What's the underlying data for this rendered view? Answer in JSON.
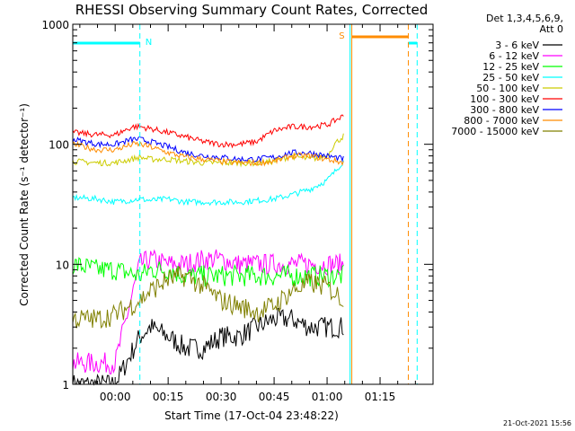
{
  "chart_data": {
    "type": "line",
    "title": "RHESSI Observing Summary Count Rates, Corrected",
    "xlabel": "Start Time (17-Oct-04 23:48:22)",
    "ylabel": "Corrected Count Rate (s⁻¹ detector⁻¹)",
    "y_scale": "log",
    "ylim": [
      1,
      1000
    ],
    "xlim_minutes": [
      -12,
      90
    ],
    "x_ticks": [
      {
        "label": "00:00",
        "minutes": 0
      },
      {
        "label": "00:15",
        "minutes": 15
      },
      {
        "label": "00:30",
        "minutes": 30
      },
      {
        "label": "00:45",
        "minutes": 45
      },
      {
        "label": "01:00",
        "minutes": 60
      },
      {
        "label": "01:15",
        "minutes": 75
      }
    ],
    "y_ticks": [
      {
        "label": "1",
        "value": 1
      },
      {
        "label": "10",
        "value": 10
      },
      {
        "label": "100",
        "value": 100
      },
      {
        "label": "1000",
        "value": 1000
      }
    ],
    "legend_header": [
      "Det 1,3,4,5,6,9,",
      "Att 0"
    ],
    "legend_placement": "right",
    "markers": [
      {
        "label": "N",
        "color": "#00ffff",
        "start_minute": -12,
        "end_minute": 7
      },
      {
        "label": "S",
        "color": "#ff8c00",
        "start_minute": 67,
        "end_minute": 83
      }
    ],
    "vlines": [
      {
        "minute": 7,
        "color": "#00ffff",
        "style": "dashed"
      },
      {
        "minute": 66.5,
        "color": "#00ffff",
        "style": "solid"
      },
      {
        "minute": 67,
        "color": "#ff8c00",
        "style": "solid"
      },
      {
        "minute": 83,
        "color": "#ff8c00",
        "style": "dashed"
      },
      {
        "minute": 85.5,
        "color": "#00ffff",
        "style": "dashed"
      }
    ],
    "series": [
      {
        "name": "3 - 6 keV",
        "color": "#000000",
        "x": [
          -12,
          -5,
          0,
          7,
          10,
          15,
          20,
          25,
          30,
          35,
          40,
          45,
          50,
          55,
          60,
          65
        ],
        "y": [
          1,
          1,
          1,
          2.5,
          3,
          2.5,
          2,
          2,
          2.5,
          2.5,
          3,
          3.5,
          3.5,
          3,
          3,
          3
        ]
      },
      {
        "name": "6 - 12 keV",
        "color": "#ff00ff",
        "x": [
          -12,
          -5,
          0,
          7,
          10,
          15,
          20,
          25,
          30,
          35,
          40,
          45,
          50,
          55,
          60,
          65
        ],
        "y": [
          1.5,
          1.5,
          1.5,
          10,
          11,
          10,
          10,
          11,
          11,
          10,
          10,
          10,
          10,
          10,
          10,
          10
        ]
      },
      {
        "name": "12 - 25 keV",
        "color": "#00ff00",
        "x": [
          -12,
          -5,
          0,
          7,
          10,
          15,
          20,
          25,
          30,
          35,
          40,
          45,
          50,
          55,
          60,
          65
        ],
        "y": [
          10,
          9,
          9,
          8,
          9,
          9,
          8,
          8,
          8,
          8,
          8,
          8,
          8,
          8,
          8,
          8
        ]
      },
      {
        "name": "25 - 50 keV",
        "color": "#00ffff",
        "x": [
          -12,
          -5,
          0,
          7,
          10,
          15,
          20,
          25,
          30,
          35,
          40,
          45,
          50,
          55,
          60,
          62,
          65
        ],
        "y": [
          36,
          35,
          33,
          35,
          34,
          35,
          33,
          33,
          33,
          33,
          34,
          35,
          38,
          42,
          50,
          58,
          75
        ]
      },
      {
        "name": "50 - 100 keV",
        "color": "#cccc00",
        "x": [
          -12,
          -5,
          0,
          7,
          10,
          15,
          20,
          25,
          30,
          35,
          40,
          45,
          50,
          55,
          60,
          62,
          65
        ],
        "y": [
          72,
          70,
          70,
          78,
          75,
          75,
          72,
          70,
          70,
          70,
          70,
          72,
          80,
          75,
          80,
          100,
          120
        ]
      },
      {
        "name": "100 - 300 keV",
        "color": "#ff0000",
        "x": [
          -12,
          -5,
          0,
          5,
          7,
          10,
          15,
          20,
          25,
          30,
          35,
          40,
          45,
          50,
          55,
          60,
          65
        ],
        "y": [
          125,
          120,
          120,
          140,
          140,
          135,
          125,
          115,
          105,
          100,
          100,
          105,
          130,
          140,
          140,
          145,
          175
        ]
      },
      {
        "name": "300 - 800 keV",
        "color": "#0000ff",
        "x": [
          -12,
          -5,
          0,
          5,
          7,
          10,
          15,
          20,
          25,
          30,
          35,
          40,
          45,
          50,
          55,
          60,
          65
        ],
        "y": [
          110,
          100,
          100,
          110,
          110,
          105,
          95,
          85,
          80,
          78,
          75,
          75,
          78,
          85,
          85,
          80,
          75
        ]
      },
      {
        "name": "800 - 7000 keV",
        "color": "#ff8c00",
        "x": [
          -12,
          -5,
          0,
          5,
          7,
          10,
          15,
          20,
          25,
          30,
          35,
          40,
          45,
          50,
          55,
          60,
          65
        ],
        "y": [
          100,
          90,
          90,
          100,
          100,
          95,
          85,
          78,
          75,
          72,
          70,
          70,
          72,
          80,
          80,
          75,
          70
        ]
      },
      {
        "name": "7000 - 15000 keV",
        "color": "#808000",
        "x": [
          -12,
          -5,
          0,
          7,
          10,
          15,
          20,
          25,
          30,
          35,
          40,
          45,
          50,
          55,
          60,
          65
        ],
        "y": [
          3.5,
          3.5,
          3.8,
          5,
          6,
          7.5,
          8,
          6.5,
          5,
          4.5,
          4,
          4.5,
          6,
          7,
          6.5,
          5
        ]
      }
    ]
  },
  "footer": {
    "timestamp": "21-Oct-2021 15:56"
  }
}
